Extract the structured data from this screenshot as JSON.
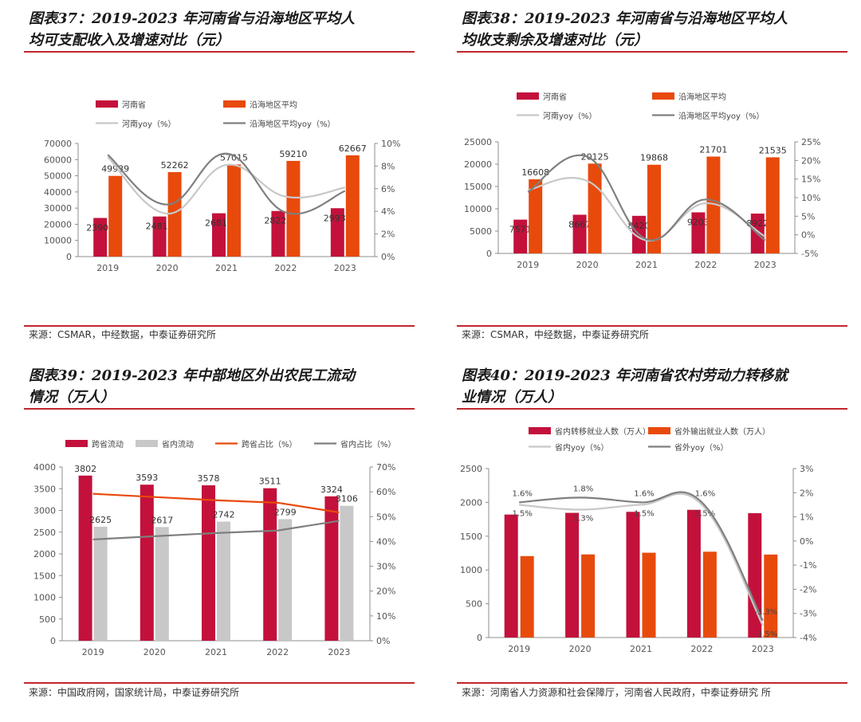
{
  "panels": [
    {
      "title": "图表37：2019-2023 年河南省与沿海地区平均人\n均可支配收入及增速对比（元）",
      "source": "来源：CSMAR，中经数据，中泰证券研究所"
    },
    {
      "title": "图表38：2019-2023 年河南省与沿海地区平均人\n均收支剩余及增速对比（元）",
      "source": "来源：CSMAR，中经数据，中泰证券研究所"
    },
    {
      "title": "图表39：2019-2023 年中部地区外出农民工流动\n情况（万人）",
      "source": "来源：中国政府网，国家统计局，中泰证券研究所"
    },
    {
      "title": "图表40：2019-2023 年河南省农村劳动力转移就\n业情况（万人）",
      "source": "来源：河南省人力资源和社会保障厅，河南省人民政府，中泰证券研究\n所"
    }
  ],
  "colors": {
    "dark_red": "#c3113b",
    "orange": "#e84a0c",
    "light_gray": "#c8c8c8",
    "dark_gray": "#7f7f7f",
    "title_rule": "#c0272d"
  },
  "chart_data": [
    {
      "type": "bar",
      "categories": [
        "2019",
        "2020",
        "2021",
        "2022",
        "2023"
      ],
      "series": [
        {
          "name": "河南省",
          "kind": "bar",
          "axis": "left",
          "color": "#c3113b",
          "values": [
            23903,
            24810,
            26811,
            28222,
            29933
          ]
        },
        {
          "name": "沿海地区平均",
          "kind": "bar",
          "axis": "left",
          "color": "#e84a0c",
          "values": [
            49939,
            52262,
            57015,
            59210,
            62667
          ]
        },
        {
          "name": "河南yoy（%）",
          "kind": "line",
          "axis": "right",
          "color": "#c8c8c8",
          "values": [
            8.8,
            3.8,
            8.1,
            5.3,
            6.1
          ]
        },
        {
          "name": "沿海地区平均yoy（%）",
          "kind": "line",
          "axis": "right",
          "color": "#7f7f7f",
          "values": [
            9.0,
            4.6,
            9.1,
            3.9,
            5.8
          ]
        }
      ],
      "ylim": [
        0,
        70000
      ],
      "yticks": [
        "0",
        "10000",
        "20000",
        "30000",
        "40000",
        "50000",
        "60000",
        "70000"
      ],
      "y2lim": [
        0,
        10
      ],
      "y2ticks": [
        "0%",
        "2%",
        "4%",
        "6%",
        "8%",
        "10%"
      ],
      "legend_position": "top",
      "bar_labels": [
        [
          "23903",
          "24810",
          "26811",
          "28222",
          "29933"
        ],
        [
          "49939",
          "52262",
          "57015",
          "59210",
          "62667"
        ]
      ]
    },
    {
      "type": "bar",
      "categories": [
        "2019",
        "2020",
        "2021",
        "2022",
        "2023"
      ],
      "series": [
        {
          "name": "河南省",
          "kind": "bar",
          "axis": "left",
          "color": "#c3113b",
          "values": [
            7571,
            8667,
            8420,
            9203,
            8922
          ]
        },
        {
          "name": "沿海地区平均",
          "kind": "bar",
          "axis": "left",
          "color": "#e84a0c",
          "values": [
            16608,
            20125,
            19868,
            21701,
            21535
          ]
        },
        {
          "name": "河南yoy（%）",
          "kind": "line",
          "axis": "right",
          "color": "#c8c8c8",
          "values": [
            12,
            14.5,
            -1.5,
            8.5,
            -0.5
          ]
        },
        {
          "name": "沿海地区平均yoy（%）",
          "kind": "line",
          "axis": "right",
          "color": "#7f7f7f",
          "values": [
            11.5,
            21,
            -1.2,
            9.5,
            -1.5
          ]
        }
      ],
      "ylim": [
        0,
        25000
      ],
      "yticks": [
        "0",
        "5000",
        "10000",
        "15000",
        "20000",
        "25000"
      ],
      "y2lim": [
        -5,
        25
      ],
      "y2ticks": [
        "-5%",
        "0%",
        "5%",
        "10%",
        "15%",
        "20%",
        "25%"
      ],
      "legend_position": "top",
      "bar_labels": [
        [
          "7571",
          "8667",
          "8420",
          "9203",
          "8922"
        ],
        [
          "16608",
          "20125",
          "19868",
          "21701",
          "21535"
        ]
      ]
    },
    {
      "type": "bar",
      "categories": [
        "2019",
        "2020",
        "2021",
        "2022",
        "2023"
      ],
      "series": [
        {
          "name": "跨省流动",
          "kind": "bar",
          "axis": "left",
          "color": "#c3113b",
          "values": [
            3802,
            3593,
            3578,
            3511,
            3324
          ]
        },
        {
          "name": "省内流动",
          "kind": "bar",
          "axis": "left",
          "color": "#c8c8c8",
          "values": [
            2625,
            2617,
            2742,
            2799,
            3106
          ]
        },
        {
          "name": "跨省占比（%）",
          "kind": "line",
          "axis": "right",
          "color": "#e84a0c",
          "values": [
            59.2,
            57.9,
            56.6,
            55.6,
            51.7
          ]
        },
        {
          "name": "省内占比（%）",
          "kind": "line",
          "axis": "right",
          "color": "#7f7f7f",
          "values": [
            40.8,
            42.1,
            43.4,
            44.4,
            48.3
          ]
        }
      ],
      "ylim": [
        0,
        4000
      ],
      "yticks": [
        "0",
        "500",
        "1000",
        "1500",
        "2000",
        "2500",
        "3000",
        "3500",
        "4000"
      ],
      "y2lim": [
        0,
        70
      ],
      "y2ticks": [
        "0%",
        "10%",
        "20%",
        "30%",
        "40%",
        "50%",
        "60%",
        "70%"
      ],
      "legend_position": "top",
      "bar_labels": [
        [
          "3802",
          "3593",
          "3578",
          "3511",
          "3324"
        ],
        [
          "2625",
          "2617",
          "2742",
          "2799",
          "3106"
        ]
      ]
    },
    {
      "type": "bar",
      "categories": [
        "2019",
        "2020",
        "2021",
        "2022",
        "2023"
      ],
      "series": [
        {
          "name": "省内转移就业人数（万人）",
          "kind": "bar",
          "axis": "left",
          "color": "#c3113b",
          "values": [
            1820,
            1845,
            1860,
            1890,
            1840
          ]
        },
        {
          "name": "省外输出就业人数（万人）",
          "kind": "bar",
          "axis": "left",
          "color": "#e84a0c",
          "values": [
            1205,
            1230,
            1255,
            1270,
            1228
          ]
        },
        {
          "name": "省内yoy（%）",
          "kind": "line",
          "axis": "right",
          "color": "#c8c8c8",
          "values": [
            1.5,
            1.3,
            1.5,
            1.5,
            -3.5
          ]
        },
        {
          "name": "省外yoy（%）",
          "kind": "line",
          "axis": "right",
          "color": "#7f7f7f",
          "values": [
            1.6,
            1.8,
            1.6,
            1.6,
            -3.3
          ]
        }
      ],
      "ylim": [
        0,
        2500
      ],
      "yticks": [
        "0",
        "500",
        "1000",
        "1500",
        "2000",
        "2500"
      ],
      "y2lim": [
        -4,
        3
      ],
      "y2ticks": [
        "-4%",
        "-3%",
        "-2%",
        "-1%",
        "0%",
        "1%",
        "2%",
        "3%"
      ],
      "legend_position": "top",
      "line_labels": [
        [
          "1.5%",
          "1.3%",
          "1.5%",
          "1.5%",
          "-3.5%"
        ],
        [
          "1.6%",
          "1.8%",
          "1.6%",
          "1.6%",
          "-3.3%"
        ]
      ]
    }
  ]
}
